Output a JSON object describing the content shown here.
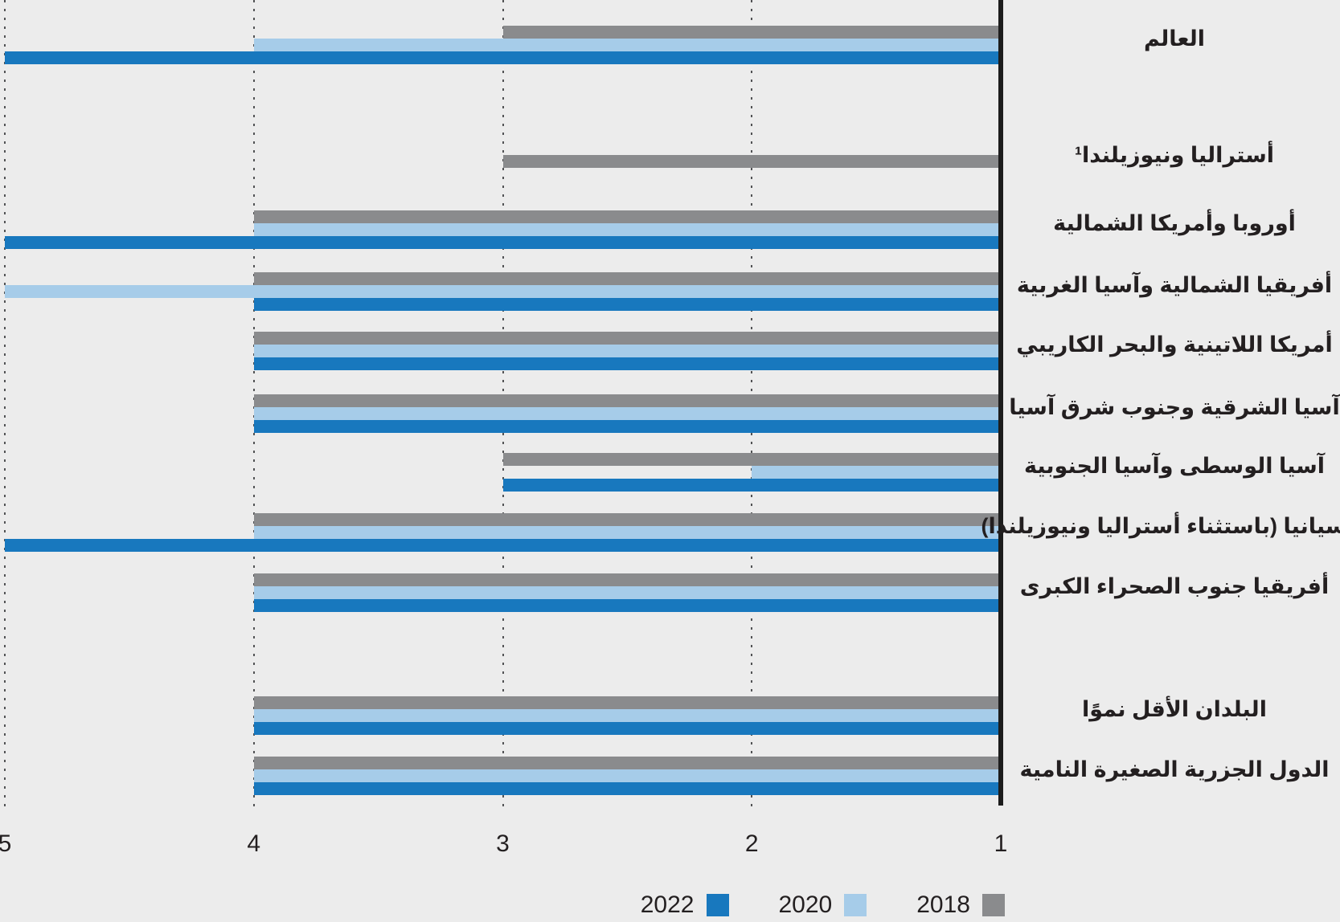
{
  "chart_data": {
    "type": "bar",
    "orientation": "horizontal",
    "direction": "rtl",
    "title": "",
    "categories": [
      "العالم",
      "أستراليا ونيوزيلندا¹",
      "أوروبا وأمريكا الشمالية",
      "أفريقيا الشمالية وآسيا الغربية",
      "أمريكا اللاتينية والبحر الكاريبي",
      "آسيا الشرقية وجنوب شرق آسيا",
      "آسيا الوسطى وآسيا الجنوبية",
      "أوسيانيا (باستثناء أستراليا ونيوزيلندا)",
      "أفريقيا جنوب الصحراء الكبرى",
      "البلدان الأقل نموًا",
      "الدول الجزرية الصغيرة النامية"
    ],
    "series": [
      {
        "name": "2018",
        "color": "#8a8b8d",
        "values": [
          3,
          3,
          4,
          4,
          4,
          4,
          3,
          4,
          4,
          4,
          4
        ]
      },
      {
        "name": "2020",
        "color": "#a6cce9",
        "values": [
          4,
          null,
          4,
          5,
          4,
          4,
          2,
          4,
          4,
          4,
          4
        ]
      },
      {
        "name": "2022",
        "color": "#1878be",
        "values": [
          5,
          null,
          5,
          4,
          4,
          4,
          3,
          5,
          4,
          4,
          4
        ]
      }
    ],
    "x_ticks": [
      5,
      4,
      3,
      2,
      1
    ],
    "xlim": [
      1,
      5
    ],
    "x_axis_reversed": true,
    "grid": "dotted-vertical",
    "legend_position": "bottom",
    "legend_order": [
      "2022",
      "2020",
      "2018"
    ]
  },
  "legend": {
    "items": [
      {
        "label": "2022",
        "color": "#1878be"
      },
      {
        "label": "2020",
        "color": "#a6cce9"
      },
      {
        "label": "2018",
        "color": "#8a8b8d"
      }
    ]
  },
  "colors": {
    "background": "#ececec",
    "axis": "#1c1c1c",
    "grid": "#515254",
    "text": "#231f20"
  }
}
